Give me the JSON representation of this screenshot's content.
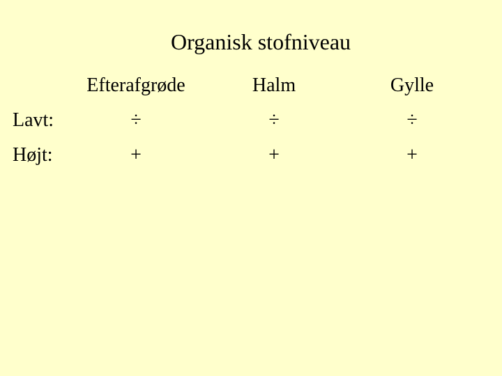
{
  "title": "Organisk stofniveau",
  "columns": [
    "Efterafgrøde",
    "Halm",
    "Gylle"
  ],
  "rows": [
    {
      "label": "Lavt:",
      "values": [
        "÷",
        "÷",
        "÷"
      ]
    },
    {
      "label": "Højt:",
      "values": [
        "+",
        "+",
        "+"
      ]
    }
  ],
  "background_color": "#ffffcc",
  "text_color": "#000000",
  "title_fontsize": 32,
  "cell_fontsize": 28,
  "font_family": "Times New Roman"
}
